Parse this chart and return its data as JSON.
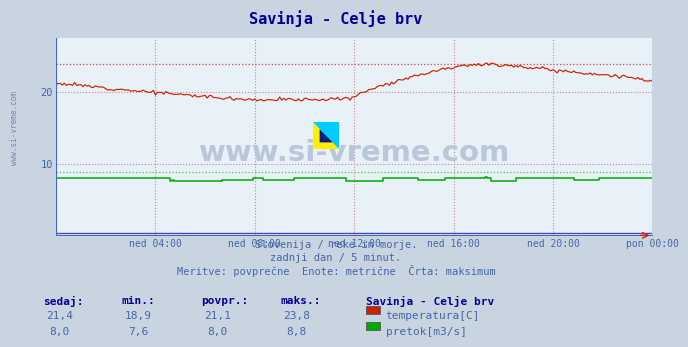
{
  "title": "Savinja - Celje brv",
  "title_color": "#000099",
  "bg_color": "#c8d4e0",
  "plot_bg_color": "#e8f0f8",
  "grid_color": "#cc8888",
  "grid_style": "dotted",
  "left_border_color": "#4466cc",
  "watermark_text": "www.si-vreme.com",
  "watermark_color": "#b8c8d8",
  "logo_colors": [
    "#ffee00",
    "#00aaff",
    "#002288"
  ],
  "subtitle_lines": [
    "Slovenija / reke in morje.",
    "zadnji dan / 5 minut.",
    "Meritve: povprečne  Enote: metrične  Črta: maksimum"
  ],
  "subtitle_color": "#4466aa",
  "xlabel_ticks": [
    "ned 04:00",
    "ned 08:00",
    "ned 12:00",
    "ned 16:00",
    "ned 20:00",
    "pon 00:00"
  ],
  "xlabel_tick_frac": [
    0.1667,
    0.3333,
    0.5,
    0.6667,
    0.8333,
    1.0
  ],
  "tick_color": "#4466aa",
  "ylim": [
    0,
    27.5
  ],
  "yticks": [
    10,
    20
  ],
  "temp_max_line": 23.8,
  "flow_max_line": 8.8,
  "temp_color": "#cc2200",
  "flow_color": "#00aa00",
  "flow_base_color": "#4444cc",
  "temp_max_color": "#dd4444",
  "flow_max_color": "#44cc44",
  "stats_header_color": "#000099",
  "stats_color": "#4466aa",
  "station_name": "Savinja - Celje brv",
  "station_color": "#000099",
  "legend_items": [
    "temperatura[C]",
    "pretok[m3/s]"
  ],
  "legend_colors": [
    "#cc2200",
    "#00aa00"
  ],
  "stats_headers": [
    "sedaj:",
    "min.:",
    "povpr.:",
    "maks.:"
  ],
  "temp_sedaj": "21,4",
  "temp_min": "18,9",
  "temp_povpr": "21,1",
  "temp_maks": "23,8",
  "flow_sedaj": "8,0",
  "flow_min": "7,6",
  "flow_povpr": "8,0",
  "flow_maks": "8,8",
  "n_points": 289
}
